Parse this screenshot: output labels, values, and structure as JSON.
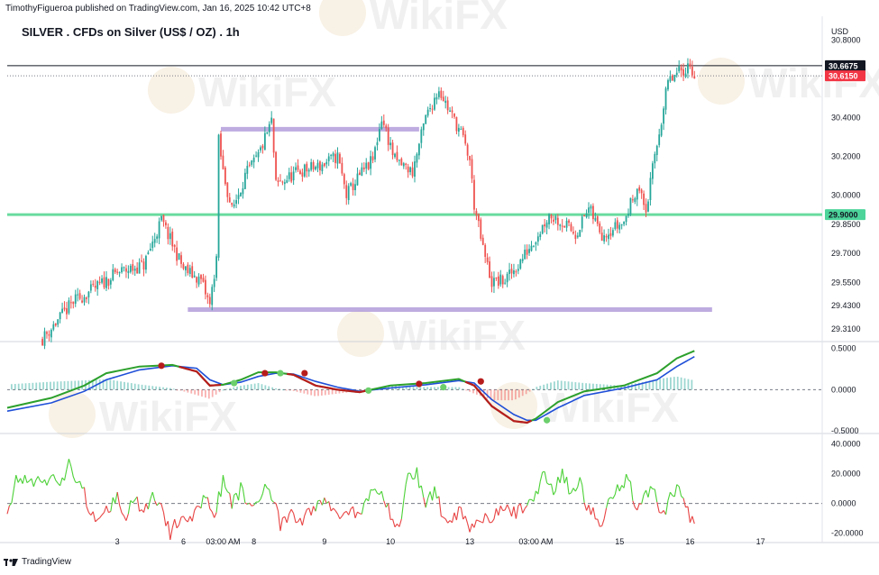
{
  "header": {
    "credit": "TimothyFigueroa published on TradingView.com, Jan 16, 2025 10:42 UTC+8",
    "title": "SILVER . CFDs on Silver (US$ / OZ) . 1h",
    "currency": "USD"
  },
  "footer": {
    "brand": "TradingView"
  },
  "watermark": "WikiFX",
  "colors": {
    "up": "#26a69a",
    "down": "#ef5350",
    "support_line": "#69db9e",
    "zone": "#b39ddb",
    "macd_fast": "#2ca02c",
    "macd_slow": "#1f4fd8",
    "macd_red": "#b71c1c",
    "price_label_dark": "#131722",
    "price_label_red": "#f23645",
    "price_label_green": "#4cd49a"
  },
  "chart_data": [
    {
      "type": "candlestick",
      "title": "SILVER . CFDs on Silver (US$ / OZ) . 1h",
      "ylim": [
        29.25,
        30.82
      ],
      "y_ticks": [
        30.8,
        30.4,
        30.2,
        30.0,
        29.85,
        29.7,
        29.55,
        29.43,
        29.31
      ],
      "y_tick_labels": [
        "30.8000",
        "30.4000",
        "30.2000",
        "30.0000",
        "29.8500",
        "29.7000",
        "29.5500",
        "29.4300",
        "29.3100"
      ],
      "x_tick_labels": [
        "3",
        "6",
        "03:00 AM",
        "8",
        "9",
        "10",
        "13",
        "03:00 AM",
        "15",
        "16",
        "17"
      ],
      "x_tick_positions": [
        10,
        40,
        58,
        72,
        104,
        134,
        170,
        200,
        238,
        270,
        302
      ],
      "x_range": [
        -40,
        330
      ],
      "price_labels": [
        {
          "value": 30.6675,
          "text": "30.6675",
          "style": "dark"
        },
        {
          "value": 30.615,
          "text": "30.6150",
          "style": "red"
        },
        {
          "value": 29.9,
          "text": "29.9000",
          "style": "green"
        }
      ],
      "horizontal_lines": [
        {
          "value": 30.6675,
          "style": "solid-dark"
        },
        {
          "value": 30.615,
          "style": "dotted"
        },
        {
          "value": 29.9,
          "style": "support"
        }
      ],
      "zones": [
        {
          "value": 30.34,
          "from": 57,
          "to": 147
        },
        {
          "value": 29.41,
          "from": 42,
          "to": 280
        }
      ],
      "close_path": [
        [
          -24,
          29.26
        ],
        [
          -10,
          29.45
        ],
        [
          0,
          29.52
        ],
        [
          10,
          29.6
        ],
        [
          22,
          29.64
        ],
        [
          30,
          29.87
        ],
        [
          40,
          29.62
        ],
        [
          48,
          29.56
        ],
        [
          52,
          29.43
        ],
        [
          55,
          29.68
        ],
        [
          56,
          30.28
        ],
        [
          58,
          30.12
        ],
        [
          62,
          29.92
        ],
        [
          68,
          30.1
        ],
        [
          74,
          30.2
        ],
        [
          80,
          30.38
        ],
        [
          82,
          30.05
        ],
        [
          92,
          30.12
        ],
        [
          102,
          30.15
        ],
        [
          110,
          30.2
        ],
        [
          114,
          30.0
        ],
        [
          120,
          30.1
        ],
        [
          126,
          30.18
        ],
        [
          130,
          30.4
        ],
        [
          136,
          30.18
        ],
        [
          144,
          30.12
        ],
        [
          150,
          30.4
        ],
        [
          156,
          30.55
        ],
        [
          160,
          30.45
        ],
        [
          166,
          30.32
        ],
        [
          170,
          30.18
        ],
        [
          172,
          29.95
        ],
        [
          176,
          29.72
        ],
        [
          180,
          29.55
        ],
        [
          186,
          29.56
        ],
        [
          192,
          29.64
        ],
        [
          198,
          29.75
        ],
        [
          202,
          29.82
        ],
        [
          206,
          29.9
        ],
        [
          212,
          29.86
        ],
        [
          218,
          29.8
        ],
        [
          224,
          29.93
        ],
        [
          230,
          29.8
        ],
        [
          240,
          29.86
        ],
        [
          246,
          30.05
        ],
        [
          250,
          29.92
        ],
        [
          254,
          30.2
        ],
        [
          260,
          30.58
        ],
        [
          266,
          30.64
        ],
        [
          270,
          30.67
        ],
        [
          272,
          30.62
        ]
      ]
    },
    {
      "type": "line",
      "name": "MACD panel",
      "ylim": [
        -0.52,
        0.55
      ],
      "y_ticks": [
        0.5,
        0.0,
        -0.5
      ],
      "y_tick_labels": [
        "0.5000",
        "0.0000",
        "-0.5000"
      ],
      "series": [
        {
          "points": [
            [
              -40,
              -0.22
            ],
            [
              -20,
              -0.1
            ],
            [
              -5,
              0.05
            ],
            [
              5,
              0.2
            ],
            [
              20,
              0.28
            ],
            [
              35,
              0.3
            ],
            [
              46,
              0.22
            ],
            [
              52,
              0.05
            ],
            [
              58,
              0.06
            ],
            [
              66,
              0.12
            ],
            [
              74,
              0.21
            ],
            [
              82,
              0.21
            ],
            [
              90,
              0.18
            ],
            [
              100,
              0.05
            ],
            [
              110,
              0.0
            ],
            [
              120,
              -0.03
            ],
            [
              134,
              0.05
            ],
            [
              150,
              0.08
            ],
            [
              165,
              0.13
            ],
            [
              172,
              0.05
            ],
            [
              180,
              -0.2
            ],
            [
              190,
              -0.38
            ],
            [
              196,
              -0.4
            ],
            [
              200,
              -0.35
            ],
            [
              210,
              -0.15
            ],
            [
              222,
              -0.02
            ],
            [
              240,
              0.05
            ],
            [
              255,
              0.2
            ],
            [
              264,
              0.38
            ],
            [
              272,
              0.47
            ]
          ]
        },
        {
          "points": [
            [
              -40,
              -0.26
            ],
            [
              -20,
              -0.16
            ],
            [
              -5,
              -0.02
            ],
            [
              5,
              0.12
            ],
            [
              20,
              0.24
            ],
            [
              35,
              0.29
            ],
            [
              46,
              0.26
            ],
            [
              52,
              0.12
            ],
            [
              58,
              0.06
            ],
            [
              66,
              0.09
            ],
            [
              74,
              0.16
            ],
            [
              82,
              0.2
            ],
            [
              90,
              0.19
            ],
            [
              100,
              0.1
            ],
            [
              110,
              0.03
            ],
            [
              120,
              -0.02
            ],
            [
              134,
              0.02
            ],
            [
              150,
              0.06
            ],
            [
              165,
              0.11
            ],
            [
              172,
              0.08
            ],
            [
              180,
              -0.12
            ],
            [
              190,
              -0.3
            ],
            [
              196,
              -0.37
            ],
            [
              200,
              -0.37
            ],
            [
              210,
              -0.22
            ],
            [
              222,
              -0.07
            ],
            [
              240,
              0.02
            ],
            [
              255,
              0.12
            ],
            [
              264,
              0.28
            ],
            [
              272,
              0.4
            ]
          ]
        }
      ],
      "cross_markers": [
        {
          "x": 30,
          "y": 0.29,
          "kind": "down"
        },
        {
          "x": 63,
          "y": 0.08,
          "kind": "up"
        },
        {
          "x": 77,
          "y": 0.2,
          "kind": "down"
        },
        {
          "x": 84,
          "y": 0.2,
          "kind": "up"
        },
        {
          "x": 95,
          "y": 0.2,
          "kind": "down"
        },
        {
          "x": 124,
          "y": -0.01,
          "kind": "up"
        },
        {
          "x": 147,
          "y": 0.07,
          "kind": "down"
        },
        {
          "x": 158,
          "y": 0.03,
          "kind": "up"
        },
        {
          "x": 175,
          "y": 0.1,
          "kind": "down"
        },
        {
          "x": 205,
          "y": -0.37,
          "kind": "up"
        }
      ]
    },
    {
      "type": "line",
      "name": "Oscillator panel",
      "ylim": [
        -25,
        45
      ],
      "y_ticks": [
        40,
        20,
        0,
        -20
      ],
      "y_tick_labels": [
        "40.0000",
        "20.0000",
        "0.0000",
        "-20.0000"
      ],
      "series": [
        {
          "points": [
            [
              -40,
              -8
            ],
            [
              -36,
              15
            ],
            [
              -20,
              15
            ],
            [
              -14,
              15
            ],
            [
              -12,
              33
            ],
            [
              -10,
              14
            ],
            [
              -6,
              15
            ],
            [
              -4,
              -2
            ],
            [
              2,
              -12
            ],
            [
              6,
              -3
            ],
            [
              10,
              4
            ],
            [
              14,
              -8
            ],
            [
              18,
              3
            ],
            [
              22,
              -10
            ],
            [
              26,
              10
            ],
            [
              30,
              -5
            ],
            [
              34,
              -20
            ],
            [
              40,
              -6
            ],
            [
              44,
              -12
            ],
            [
              50,
              8
            ],
            [
              54,
              -8
            ],
            [
              58,
              15
            ],
            [
              62,
              -2
            ],
            [
              66,
              10
            ],
            [
              70,
              -3
            ],
            [
              74,
              2
            ],
            [
              78,
              15
            ],
            [
              84,
              -15
            ],
            [
              88,
              -8
            ],
            [
              94,
              -12
            ],
            [
              98,
              -4
            ],
            [
              104,
              2
            ],
            [
              110,
              -8
            ],
            [
              116,
              -3
            ],
            [
              120,
              -10
            ],
            [
              124,
              4
            ],
            [
              130,
              12
            ],
            [
              134,
              -10
            ],
            [
              138,
              -16
            ],
            [
              142,
              18
            ],
            [
              146,
              20
            ],
            [
              150,
              0
            ],
            [
              154,
              8
            ],
            [
              158,
              -8
            ],
            [
              162,
              -10
            ],
            [
              166,
              -3
            ],
            [
              170,
              -18
            ],
            [
              174,
              -8
            ],
            [
              180,
              -10
            ],
            [
              186,
              -4
            ],
            [
              192,
              -6
            ],
            [
              198,
              2
            ],
            [
              204,
              20
            ],
            [
              208,
              8
            ],
            [
              212,
              20
            ],
            [
              216,
              6
            ],
            [
              220,
              15
            ],
            [
              224,
              -5
            ],
            [
              230,
              -12
            ],
            [
              236,
              10
            ],
            [
              242,
              18
            ],
            [
              246,
              -6
            ],
            [
              252,
              12
            ],
            [
              258,
              -8
            ],
            [
              262,
              10
            ],
            [
              266,
              8
            ],
            [
              270,
              -10
            ],
            [
              272,
              -14
            ]
          ]
        }
      ],
      "reference_line": 0
    }
  ]
}
